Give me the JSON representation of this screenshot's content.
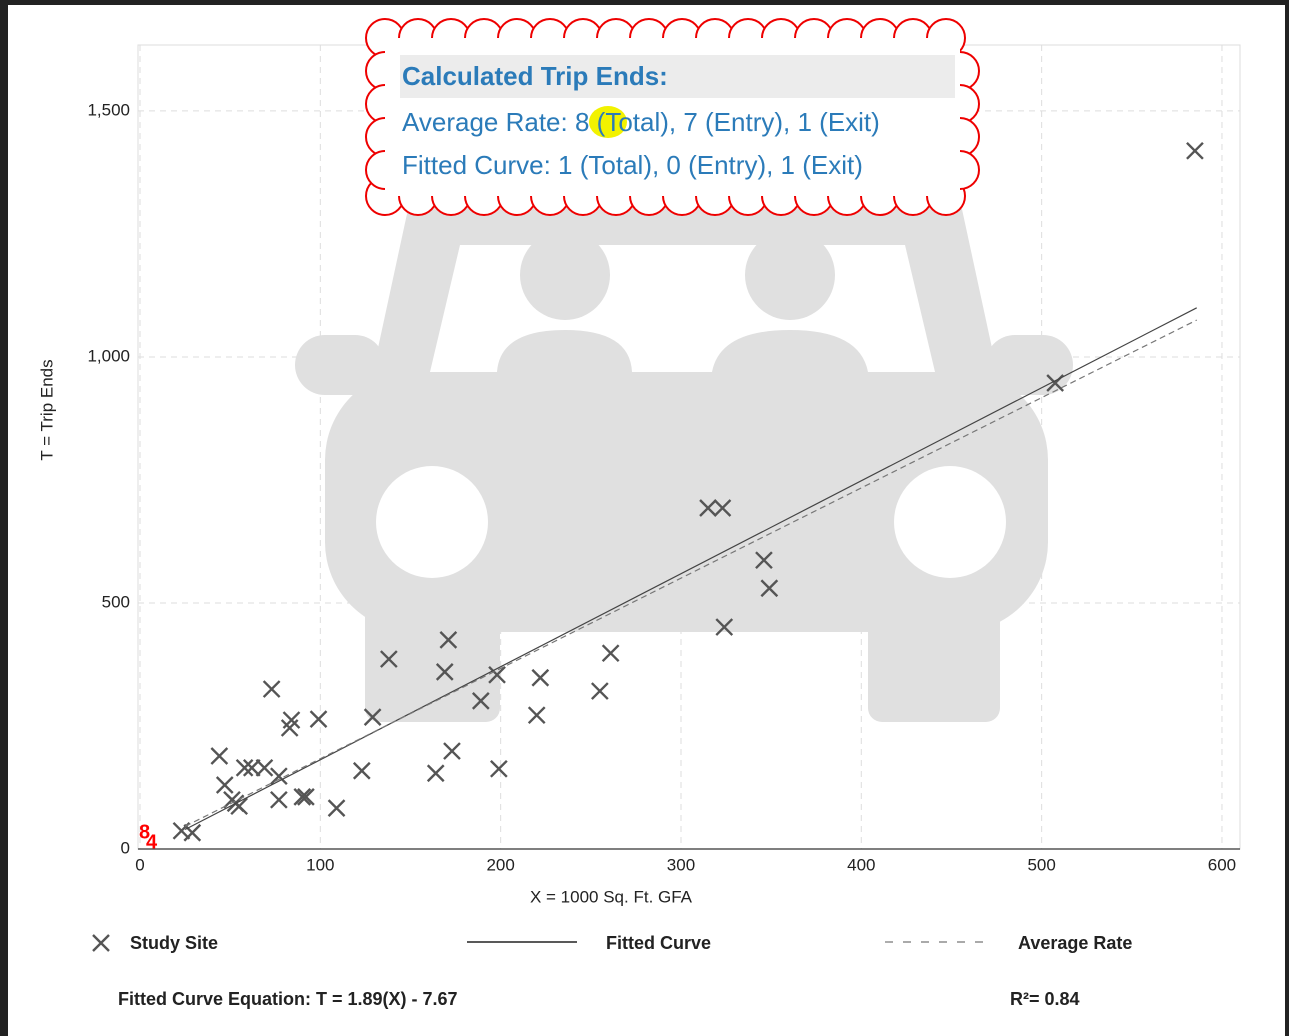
{
  "chart_data": {
    "type": "scatter",
    "x_label": "X = 1000 Sq. Ft. GFA",
    "y_label": "T = Trip Ends",
    "xlim": [
      0,
      610
    ],
    "ylim": [
      0,
      1634
    ],
    "xticks": [
      0,
      100,
      200,
      300,
      400,
      500,
      600
    ],
    "yticks": [
      0,
      500,
      {
        "value": 1000,
        "label": "1,000"
      },
      {
        "value": 1500,
        "label": "1,500"
      }
    ],
    "grid": true,
    "series": [
      {
        "name": "Study Site",
        "color": "#555555",
        "x": [
          585,
          507.5,
          315,
          323,
          346,
          349,
          324,
          261,
          255,
          222,
          220,
          198,
          199,
          189,
          171,
          169,
          173,
          164,
          138,
          129,
          123,
          109,
          99,
          84,
          83,
          73,
          77,
          77,
          69,
          62,
          58,
          90,
          92,
          44,
          47,
          51,
          53,
          55,
          23,
          29
        ],
        "values": [
          1419,
          947,
          693,
          693,
          587,
          530,
          451,
          398,
          321,
          348,
          272,
          354,
          163,
          301,
          425,
          360,
          199,
          154,
          386,
          268,
          159,
          83,
          264,
          262,
          246,
          325,
          148,
          100,
          165,
          165,
          165,
          106,
          106,
          189,
          130,
          100,
          93,
          87,
          37,
          33
        ]
      },
      {
        "name": "Fitted Curve",
        "color": "#444444",
        "x": [
          25,
          586
        ],
        "values": [
          39.6,
          1099.9
        ]
      },
      {
        "name": "Average Rate",
        "color": "#777777",
        "dashed": true,
        "x": [
          25,
          586
        ],
        "values": [
          46,
          1075
        ]
      }
    ],
    "annotations": [
      {
        "text": "8",
        "color": "#ff0000"
      },
      {
        "text": "4",
        "color": "#ff0000"
      }
    ],
    "callout": {
      "title": "Calculated Trip Ends:",
      "average_rate": [
        "Average Rate: ",
        "8",
        " (Total), 7 (Entry), 1 (Exit)"
      ],
      "fitted_curve": "Fitted Curve: 1 (Total), 0 (Entry), 1 (Exit)"
    },
    "equation": "Fitted Curve Equation: T = 1.89(X) - 7.67",
    "r_squared": "R²= 0.84"
  }
}
